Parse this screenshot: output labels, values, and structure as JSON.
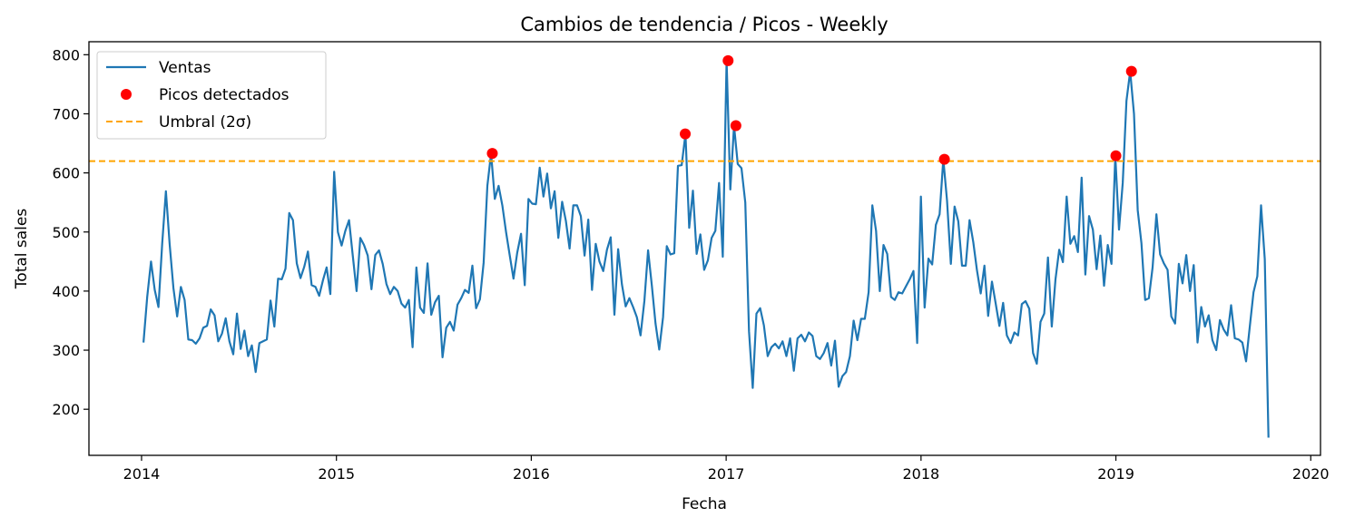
{
  "chart_data": {
    "type": "line",
    "title": "Cambios de tendencia / Picos - Weekly",
    "xlabel": "Fecha",
    "ylabel": "Total sales",
    "xlim": [
      2013.73,
      2020.05
    ],
    "ylim": [
      122,
      822
    ],
    "x_ticks": [
      2014,
      2015,
      2016,
      2017,
      2018,
      2019,
      2020
    ],
    "x_tick_labels": [
      "2014",
      "2015",
      "2016",
      "2017",
      "2018",
      "2019",
      "2020"
    ],
    "y_ticks": [
      200,
      300,
      400,
      500,
      600,
      700,
      800
    ],
    "y_tick_labels": [
      "200",
      "300",
      "400",
      "500",
      "600",
      "700",
      "800"
    ],
    "legend_position": "top-left",
    "legend": [
      "Ventas",
      "Picos detectados",
      "Umbral (2σ)"
    ],
    "colors": {
      "line": "#1f77b4",
      "peaks": "#ff0000",
      "threshold": "#ffa500"
    },
    "threshold": 620,
    "series": [
      {
        "name": "Ventas",
        "start_year": 2014.01,
        "step_years": 0.01918,
        "values": [
          313,
          390,
          450,
          402,
          373,
          480,
          569,
          480,
          405,
          357,
          407,
          385,
          318,
          317,
          311,
          320,
          338,
          341,
          369,
          359,
          315,
          328,
          354,
          315,
          293,
          362,
          302,
          333,
          290,
          308,
          263,
          312,
          315,
          318,
          384,
          340,
          421,
          420,
          438,
          532,
          520,
          447,
          422,
          441,
          467,
          410,
          407,
          392,
          418,
          440,
          395,
          602,
          500,
          477,
          502,
          520,
          460,
          400,
          490,
          478,
          460,
          403,
          461,
          469,
          446,
          412,
          395,
          407,
          400,
          379,
          372,
          385,
          305,
          440,
          372,
          363,
          447,
          360,
          381,
          392,
          288,
          338,
          348,
          333,
          377,
          388,
          402,
          397,
          443,
          371,
          386,
          448,
          578,
          633,
          556,
          578,
          545,
          500,
          460,
          421,
          465,
          497,
          410,
          556,
          548,
          547,
          609,
          560,
          599,
          540,
          569,
          490,
          551,
          519,
          472,
          545,
          545,
          527,
          460,
          521,
          402,
          480,
          450,
          434,
          470,
          491,
          360,
          471,
          411,
          374,
          388,
          373,
          356,
          325,
          383,
          469,
          410,
          345,
          301,
          356,
          476,
          462,
          464,
          612,
          613,
          666,
          507,
          570,
          463,
          496,
          436,
          452,
          490,
          502,
          583,
          458,
          790,
          572,
          680,
          615,
          608,
          550,
          332,
          236,
          362,
          371,
          342,
          290,
          305,
          311,
          303,
          315,
          290,
          320,
          265,
          320,
          326,
          315,
          330,
          324,
          290,
          285,
          295,
          312,
          274,
          316,
          238,
          256,
          263,
          290,
          350,
          317,
          353,
          353,
          398,
          545,
          502,
          400,
          478,
          463,
          390,
          385,
          398,
          396,
          408,
          420,
          434,
          312,
          560,
          372,
          455,
          445,
          512,
          530,
          623,
          553,
          446,
          543,
          518,
          443,
          443,
          520,
          483,
          435,
          396,
          443,
          358,
          416,
          379,
          341,
          380,
          325,
          312,
          330,
          325,
          378,
          383,
          370,
          295,
          277,
          348,
          362,
          457,
          340,
          420,
          470,
          449,
          560,
          480,
          493,
          466,
          592,
          428,
          527,
          504,
          437,
          494,
          409,
          478,
          446,
          629,
          504,
          583,
          722,
          772,
          700,
          537,
          481,
          385,
          388,
          440,
          530,
          462,
          447,
          436,
          357,
          345,
          446,
          413,
          461,
          400,
          444,
          313,
          373,
          340,
          359,
          317,
          300,
          351,
          335,
          325,
          376,
          320,
          318,
          313,
          281,
          340,
          398,
          425,
          545,
          454,
          152
        ]
      },
      {
        "name": "Picos detectados",
        "x": [
          2015.8,
          2016.79,
          2017.01,
          2017.05,
          2018.12,
          2019.0,
          2019.08
        ],
        "y": [
          633,
          666,
          790,
          680,
          623,
          629,
          772
        ]
      }
    ]
  }
}
